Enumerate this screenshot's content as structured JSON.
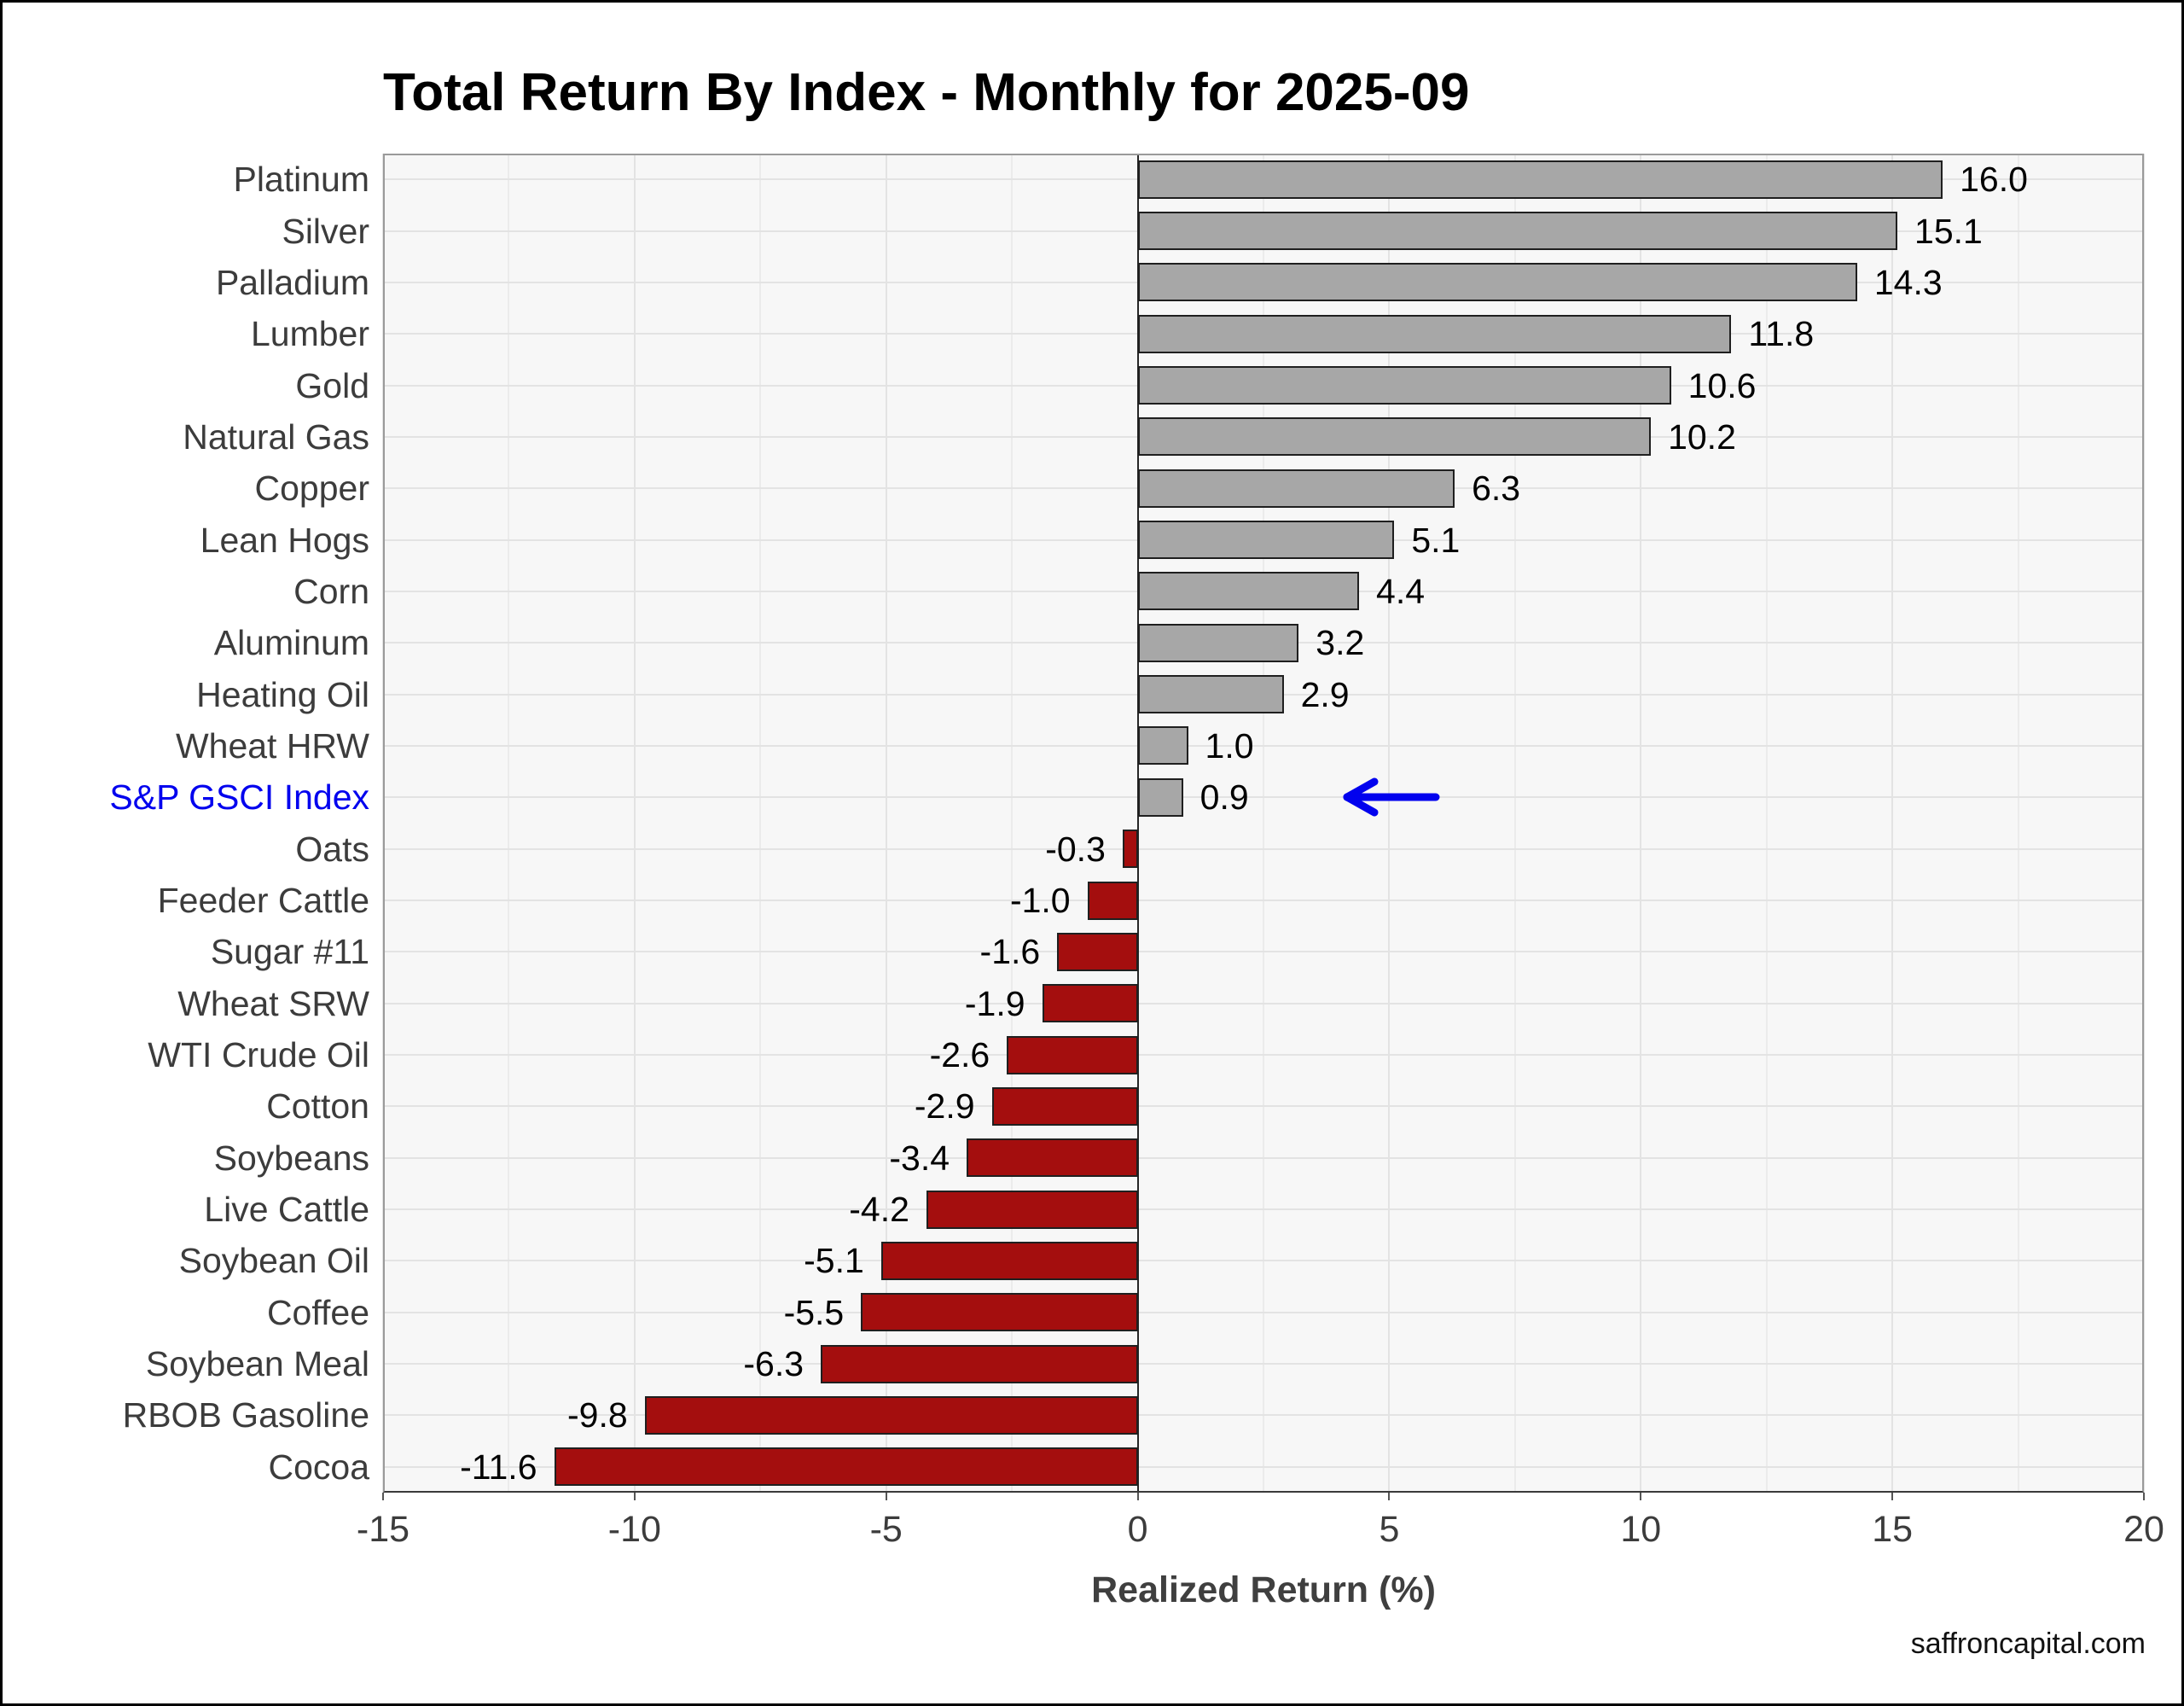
{
  "title": "Total Return By Index - Monthly for 2025-09",
  "watermark": "saffroncapital.com",
  "chart_data": {
    "type": "bar",
    "orientation": "horizontal",
    "title": "Total Return By Index - Monthly for 2025-09",
    "xlabel": "Realized Return (%)",
    "ylabel": "",
    "xlim": [
      -15,
      20
    ],
    "x_major_ticks": [
      -15,
      -10,
      -5,
      0,
      5,
      10,
      15,
      20
    ],
    "x_minor_ticks": [
      -12.5,
      -7.5,
      -2.5,
      2.5,
      7.5,
      12.5,
      17.5
    ],
    "grid": "on",
    "legend": "none",
    "categories": [
      "Platinum",
      "Silver",
      "Palladium",
      "Lumber",
      "Gold",
      "Natural Gas",
      "Copper",
      "Lean Hogs",
      "Corn",
      "Aluminum",
      "Heating Oil",
      "Wheat HRW",
      "S&P GSCI Index",
      "Oats",
      "Feeder Cattle",
      "Sugar #11",
      "Wheat SRW",
      "WTI Crude Oil",
      "Cotton",
      "Soybeans",
      "Live Cattle",
      "Soybean Oil",
      "Coffee",
      "Soybean Meal",
      "RBOB Gasoline",
      "Cocoa"
    ],
    "values": [
      16.0,
      15.1,
      14.3,
      11.8,
      10.6,
      10.2,
      6.3,
      5.1,
      4.4,
      3.2,
      2.9,
      1.0,
      0.9,
      -0.3,
      -1.0,
      -1.6,
      -1.9,
      -2.6,
      -2.9,
      -3.4,
      -4.2,
      -5.1,
      -5.5,
      -6.3,
      -9.8,
      -11.6
    ],
    "highlight": {
      "category": "S&P GSCI Index",
      "index": 12,
      "label_color": "#0202ee",
      "annotation": "blue left-pointing arrow beside value"
    },
    "colors": {
      "positive_bar": "#a7a7a7",
      "negative_bar": "#a40e0e",
      "bar_border": "#1f1f1f",
      "highlight_blue": "#0202ee",
      "panel_background": "#f7f7f7"
    }
  }
}
